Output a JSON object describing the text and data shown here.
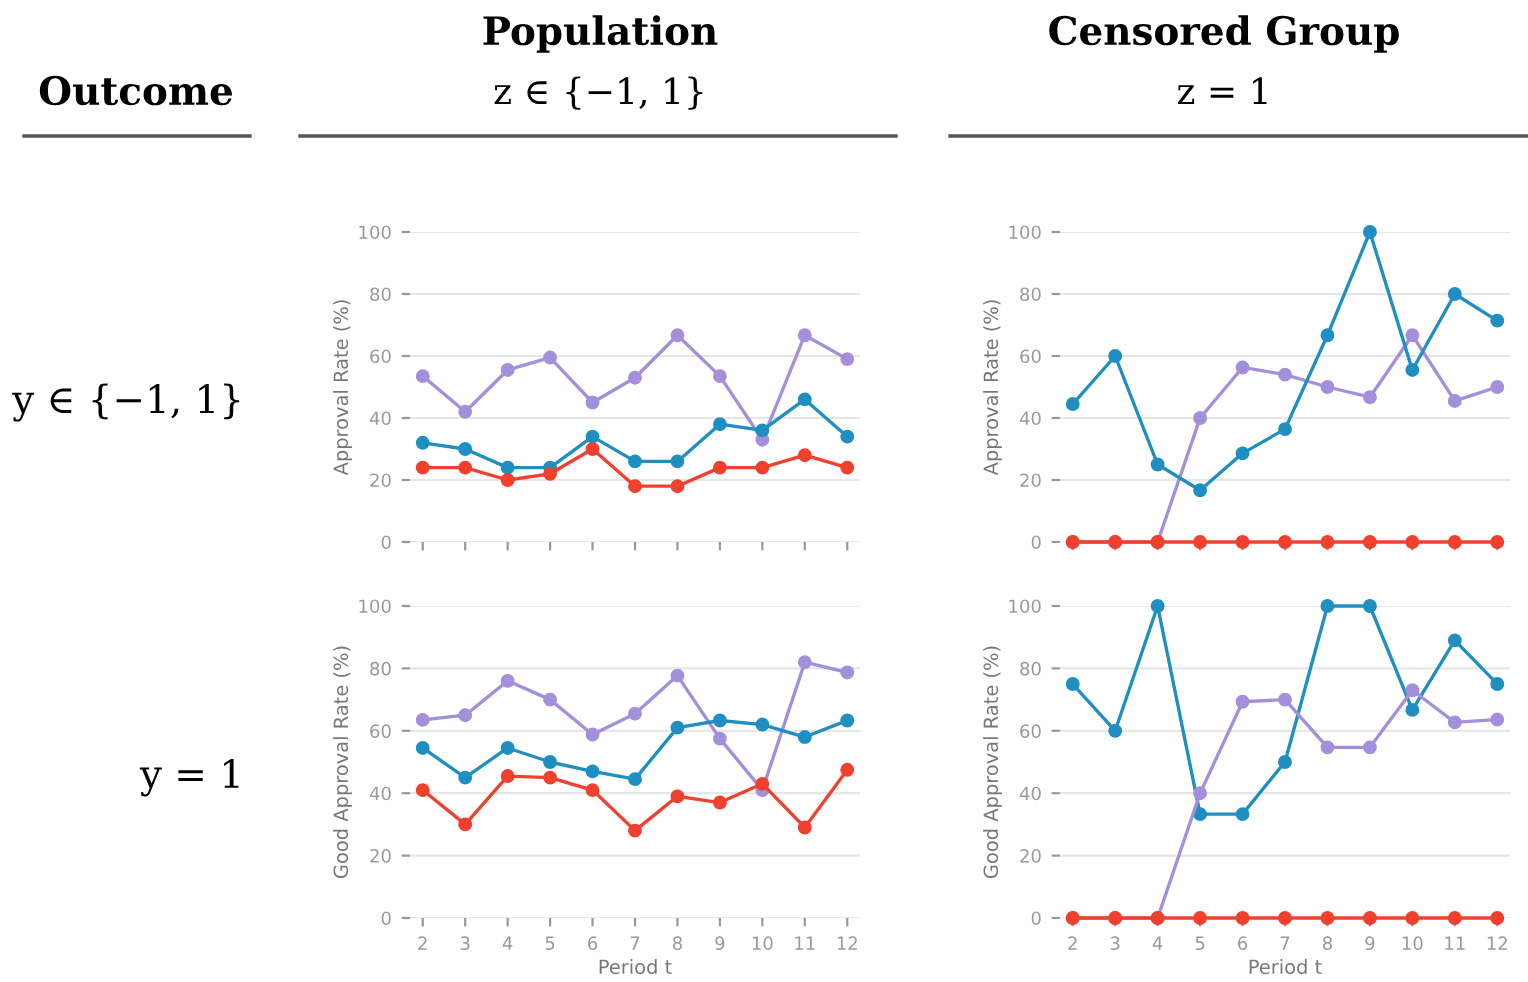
{
  "chart_data": [
    {
      "type": "line",
      "title": "Population",
      "subtitle": "z ∈ {−1, 1}",
      "ylabel": "Approval Rate (%)",
      "annotations": [
        "Outcome",
        "y ∈ {−1, 1}"
      ],
      "categories": [
        "2",
        "3",
        "4",
        "5",
        "6",
        "7",
        "8",
        "9",
        "10",
        "11",
        "12"
      ],
      "tick_labels": "y",
      "ylim": [
        0,
        100
      ],
      "yticks": [
        0,
        20,
        40,
        60,
        80,
        100
      ],
      "grid": "y",
      "legend": false,
      "marker": "circle",
      "line_style": "solid",
      "series": [
        {
          "color": "#a48fdb",
          "values": [
            53.5,
            42,
            55.5,
            59.5,
            45,
            53,
            66.7,
            53.5,
            33,
            66.7,
            59
          ]
        },
        {
          "color": "#1f8fc2",
          "values": [
            32,
            30,
            24,
            24,
            34,
            26,
            26,
            38,
            36,
            46,
            34
          ]
        },
        {
          "color": "#f0402e",
          "values": [
            24,
            24,
            20,
            22,
            30,
            18,
            18,
            24,
            24,
            28,
            24
          ]
        }
      ]
    },
    {
      "type": "line",
      "title": "Censored Group",
      "subtitle": "z = 1",
      "ylabel": "Approval Rate (%)",
      "categories": [
        "2",
        "3",
        "4",
        "5",
        "6",
        "7",
        "8",
        "9",
        "10",
        "11",
        "12"
      ],
      "tick_labels": "y",
      "ylim": [
        0,
        100
      ],
      "yticks": [
        0,
        20,
        40,
        60,
        80,
        100
      ],
      "grid": "y",
      "legend": false,
      "marker": "circle",
      "line_style": "solid",
      "series": [
        {
          "color": "#a48fdb",
          "values": [
            0,
            0,
            0,
            40,
            56.3,
            54,
            50,
            46.7,
            66.7,
            45.5,
            50
          ]
        },
        {
          "color": "#1f8fc2",
          "values": [
            44.5,
            60,
            25,
            16.7,
            28.6,
            36.4,
            66.7,
            100,
            55.5,
            80,
            71.4
          ]
        },
        {
          "color": "#f0402e",
          "values": [
            0,
            0,
            0,
            0,
            0,
            0,
            0,
            0,
            0,
            0,
            0
          ]
        }
      ]
    },
    {
      "type": "line",
      "xlabel": "Period t",
      "ylabel": "Good Approval Rate (%)",
      "annotations": [
        "y = 1"
      ],
      "categories": [
        "2",
        "3",
        "4",
        "5",
        "6",
        "7",
        "8",
        "9",
        "10",
        "11",
        "12"
      ],
      "ylim": [
        0,
        100
      ],
      "yticks": [
        0,
        20,
        40,
        60,
        80,
        100
      ],
      "grid": "y",
      "legend": false,
      "marker": "circle",
      "line_style": "solid",
      "series": [
        {
          "color": "#a48fdb",
          "values": [
            63.5,
            65,
            76,
            70,
            58.8,
            65.5,
            77.7,
            57.5,
            41,
            82,
            78.7
          ]
        },
        {
          "color": "#1f8fc2",
          "values": [
            54.5,
            45,
            54.5,
            50,
            47,
            44.5,
            61,
            63.3,
            62,
            58,
            63.3
          ]
        },
        {
          "color": "#f0402e",
          "values": [
            41,
            30,
            45.5,
            45,
            41,
            28,
            39,
            37,
            43,
            29,
            47.5
          ]
        }
      ]
    },
    {
      "type": "line",
      "xlabel": "Period t",
      "ylabel": "Good Approval Rate (%)",
      "categories": [
        "2",
        "3",
        "4",
        "5",
        "6",
        "7",
        "8",
        "9",
        "10",
        "11",
        "12"
      ],
      "ylim": [
        0,
        100
      ],
      "yticks": [
        0,
        20,
        40,
        60,
        80,
        100
      ],
      "grid": "y",
      "legend": false,
      "marker": "circle",
      "line_style": "solid",
      "series": [
        {
          "color": "#1f8fc2",
          "values": [
            75,
            60,
            100,
            33.3,
            33.3,
            50,
            100,
            100,
            66.7,
            89,
            75
          ]
        },
        {
          "color": "#a48fdb",
          "values": [
            0,
            0,
            0,
            40,
            69.3,
            70,
            54.7,
            54.7,
            73,
            62.7,
            63.6
          ]
        },
        {
          "color": "#f0402e",
          "values": [
            0,
            0,
            0,
            0,
            0,
            0,
            0,
            0,
            0,
            0,
            0
          ]
        }
      ]
    }
  ]
}
